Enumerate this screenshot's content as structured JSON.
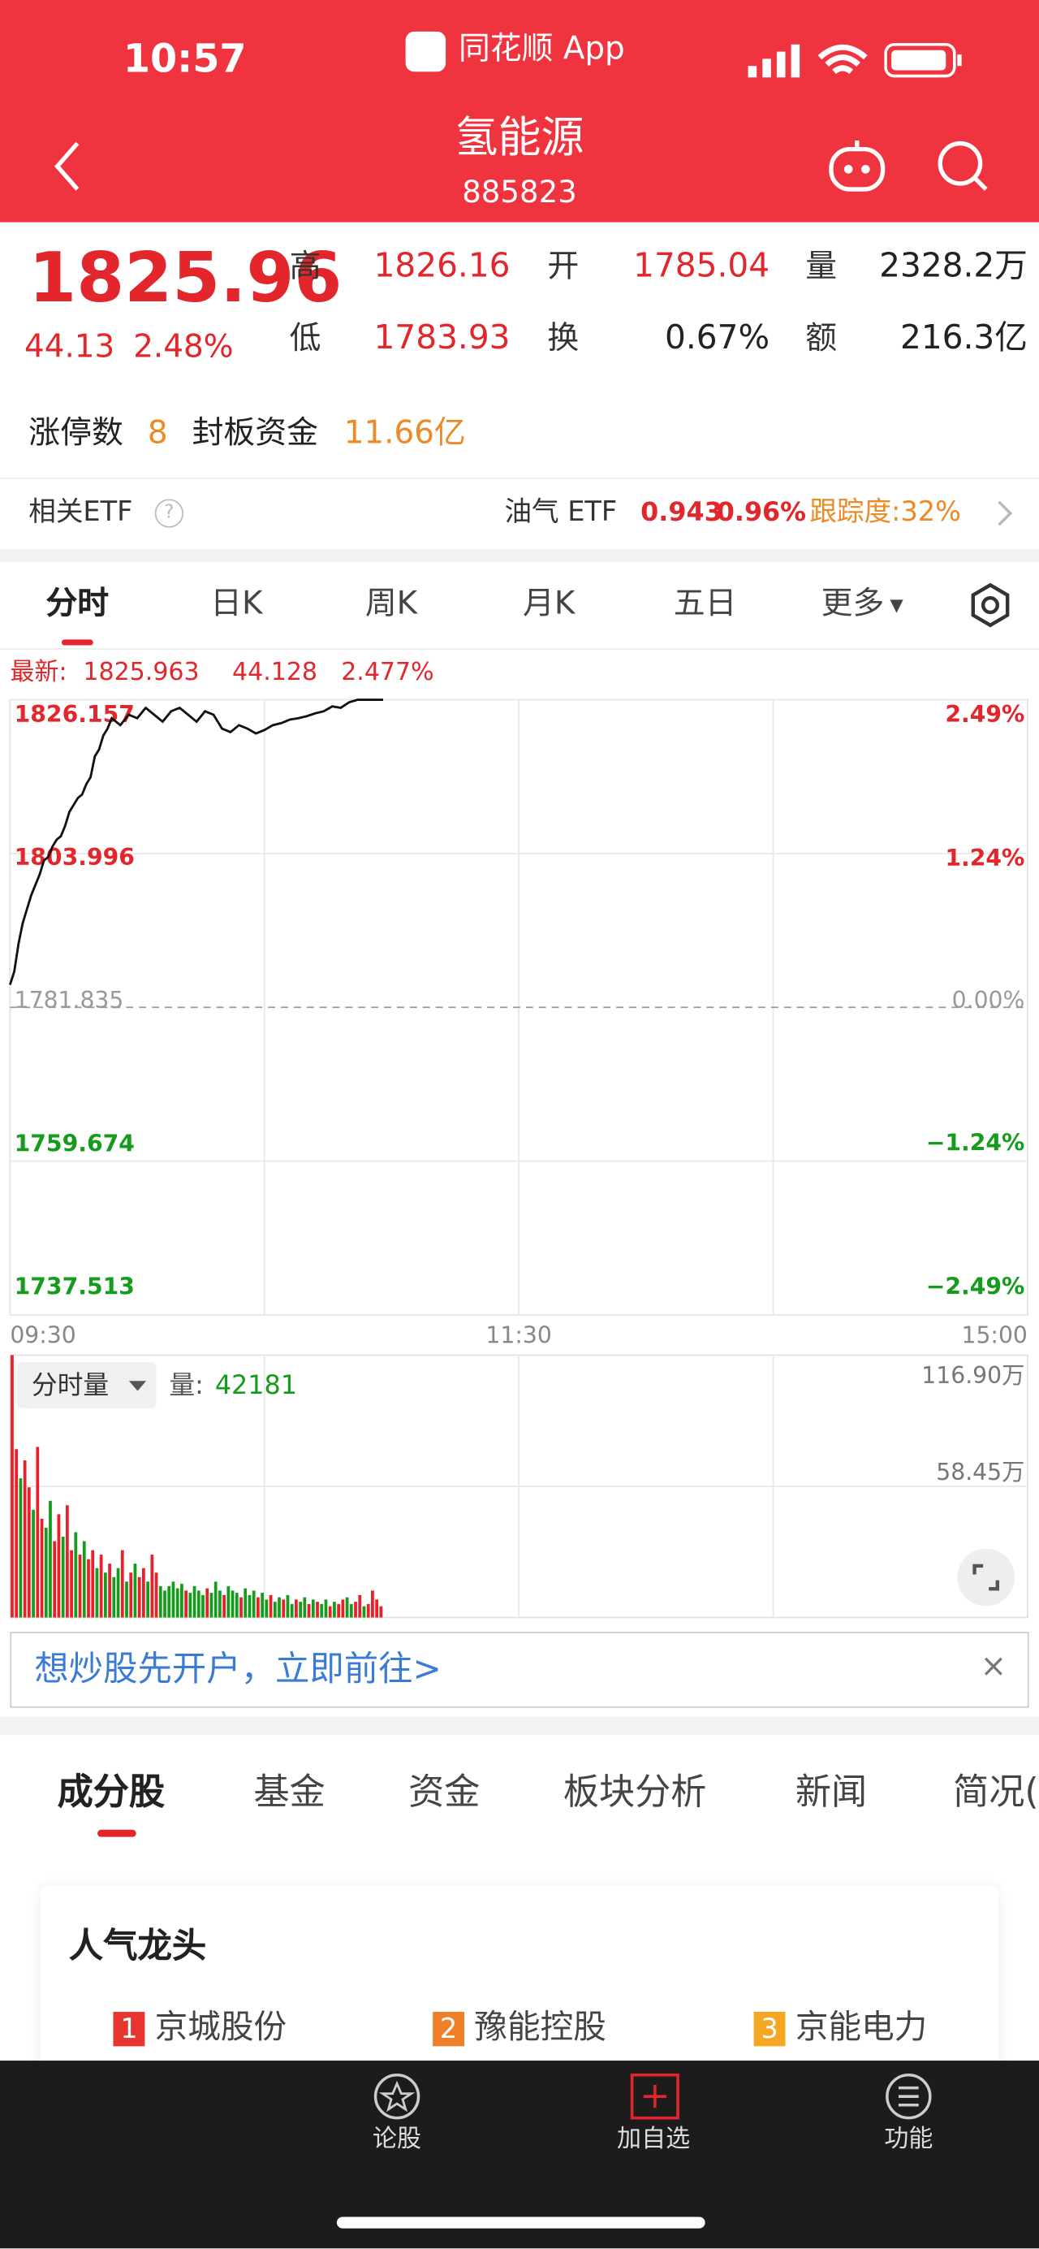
{
  "status_bar": {
    "time": "10:57",
    "app": "同花顺 App"
  },
  "header": {
    "title": "氢能源",
    "code": "885823"
  },
  "quote": {
    "price": "1825.96",
    "change": "44.13",
    "change_pct": "2.48%",
    "stats": [
      {
        "label": "高",
        "value": "1826.16",
        "color": "#e3262b"
      },
      {
        "label": "低",
        "value": "1783.93",
        "color": "#e3262b"
      },
      {
        "label": "开",
        "value": "1785.04",
        "color": "#e3262b"
      },
      {
        "label": "换",
        "value": "0.67%",
        "color": "#222222"
      },
      {
        "label": "量",
        "value": "2328.2万",
        "color": "#222222"
      },
      {
        "label": "额",
        "value": "216.3亿",
        "color": "#222222"
      }
    ]
  },
  "limit_up": {
    "count_label": "涨停数",
    "count": "8",
    "fund_label": "封板资金",
    "fund": "11.66亿"
  },
  "etf": {
    "label": "相关ETF",
    "name": "油气 ETF",
    "price": "0.943",
    "change_pct": "0.96%",
    "tracking": "跟踪度:32%"
  },
  "chart_tabs": [
    "分时",
    "日K",
    "周K",
    "月K",
    "五日",
    "更多"
  ],
  "chart": {
    "latest_label": "最新:",
    "latest": [
      "1825.963",
      "44.128",
      "2.477%"
    ],
    "price": {
      "type": "line",
      "color": "#111111",
      "x": [
        0,
        1,
        2,
        3,
        4,
        5,
        6,
        7,
        8,
        9,
        10,
        11,
        12,
        13,
        14,
        15,
        16,
        17,
        18,
        19,
        20,
        21,
        22,
        23,
        24,
        26,
        28,
        30,
        32,
        34,
        36,
        38,
        40,
        42,
        44,
        46,
        48,
        50,
        52,
        54,
        56,
        58,
        60,
        62,
        64,
        66,
        68,
        70,
        72,
        74,
        76,
        78,
        80,
        82,
        85,
        88
      ],
      "values": [
        1785.1,
        1787,
        1791,
        1794,
        1796,
        1798,
        1799.5,
        1801,
        1803,
        1803.5,
        1805,
        1806,
        1806.5,
        1808,
        1810,
        1811,
        1812,
        1812.5,
        1814,
        1815,
        1818,
        1819,
        1821,
        1822,
        1823.5,
        1822.5,
        1824,
        1823.5,
        1825,
        1824,
        1823,
        1824.5,
        1825,
        1824,
        1823,
        1824.5,
        1824,
        1822,
        1821.5,
        1822.5,
        1822,
        1821.3,
        1821.8,
        1822.5,
        1822.8,
        1823.3,
        1823.5,
        1823.8,
        1824.2,
        1824.5,
        1825.2,
        1825,
        1825.8,
        1826.157,
        1826.157,
        1826.157
      ],
      "xlim": [
        0,
        240
      ],
      "xticks": [
        {
          "value": 0,
          "label": "09:30"
        },
        {
          "value": 120,
          "label": "11:30"
        },
        {
          "value": 240,
          "label": "15:00"
        }
      ],
      "ylim": [
        1737.513,
        1826.157
      ],
      "yticks": [
        1826.157,
        1803.996,
        1781.835,
        1759.674,
        1737.513
      ],
      "y2lim": [
        -2.49,
        2.49
      ],
      "y2ticks": [
        {
          "value": 2.49,
          "label": "2.49%"
        },
        {
          "value": 1.24,
          "label": "1.24%"
        },
        {
          "value": 0,
          "label": "0.00%"
        },
        {
          "value": -1.24,
          "label": "−1.24%"
        },
        {
          "value": -2.49,
          "label": "−2.49%"
        }
      ]
    },
    "volume": {
      "type": "bar",
      "label": "分时量",
      "value_label": "量:",
      "value": "42181",
      "values": [
        116.9,
        75,
        62,
        70,
        58,
        48,
        76,
        44,
        40,
        52,
        34,
        46,
        36,
        50,
        30,
        38,
        28,
        34,
        26,
        30,
        22,
        28,
        20,
        24,
        18,
        22,
        30,
        16,
        20,
        24,
        18,
        22,
        16,
        28,
        20,
        14,
        12,
        14,
        16,
        13,
        15,
        12,
        11,
        14,
        12,
        10,
        13,
        11,
        16,
        12,
        10,
        14,
        12,
        11,
        9,
        13,
        10,
        12,
        9,
        11,
        8,
        10,
        7,
        9,
        8,
        10,
        6,
        8,
        7,
        9,
        6,
        8,
        7,
        6,
        8,
        5,
        7,
        6,
        8,
        9,
        6,
        7,
        10,
        5,
        6,
        12,
        8,
        5
      ],
      "colors": [
        "#e8202a",
        "#e8202a",
        "#169c1c",
        "#e8202a",
        "#e8202a",
        "#169c1c",
        "#e8202a",
        "#e8202a",
        "#169c1c",
        "#169c1c",
        "#e8202a",
        "#e8202a",
        "#169c1c",
        "#e8202a",
        "#e8202a",
        "#169c1c",
        "#e8202a",
        "#169c1c",
        "#e8202a",
        "#e8202a",
        "#169c1c",
        "#e8202a",
        "#169c1c",
        "#e8202a",
        "#169c1c",
        "#169c1c",
        "#e8202a",
        "#169c1c",
        "#e8202a",
        "#169c1c",
        "#e8202a",
        "#e8202a",
        "#169c1c",
        "#e8202a",
        "#e8202a",
        "#169c1c",
        "#169c1c",
        "#169c1c",
        "#169c1c",
        "#169c1c",
        "#169c1c",
        "#e8202a",
        "#169c1c",
        "#169c1c",
        "#169c1c",
        "#169c1c",
        "#e8202a",
        "#169c1c",
        "#169c1c",
        "#169c1c",
        "#e8202a",
        "#169c1c",
        "#169c1c",
        "#169c1c",
        "#e8202a",
        "#169c1c",
        "#169c1c",
        "#169c1c",
        "#e8202a",
        "#169c1c",
        "#169c1c",
        "#e8202a",
        "#169c1c",
        "#169c1c",
        "#e8202a",
        "#169c1c",
        "#169c1c",
        "#e8202a",
        "#169c1c",
        "#169c1c",
        "#e8202a",
        "#169c1c",
        "#e8202a",
        "#169c1c",
        "#169c1c",
        "#e8202a",
        "#169c1c",
        "#e8202a",
        "#e8202a",
        "#169c1c",
        "#169c1c",
        "#e8202a",
        "#e8202a",
        "#169c1c",
        "#e8202a",
        "#e8202a",
        "#e8202a",
        "#e8202a"
      ],
      "ylim": [
        0,
        116.9
      ],
      "yticks": [
        {
          "value": 116.9,
          "label": "116.90万"
        },
        {
          "value": 58.45,
          "label": "58.45万"
        }
      ]
    }
  },
  "banner": "想炒股先开户，立即前往>",
  "section_tabs": [
    "成分股",
    "基金",
    "资金",
    "板块分析",
    "新闻",
    "简况("
  ],
  "leaders": {
    "title": "人气龙头",
    "items": [
      {
        "rank": "1",
        "name": "京城股份"
      },
      {
        "rank": "2",
        "name": "豫能控股"
      },
      {
        "rank": "3",
        "name": "京能电力"
      }
    ]
  },
  "bottom_nav": [
    "论股",
    "加自选",
    "功能"
  ]
}
